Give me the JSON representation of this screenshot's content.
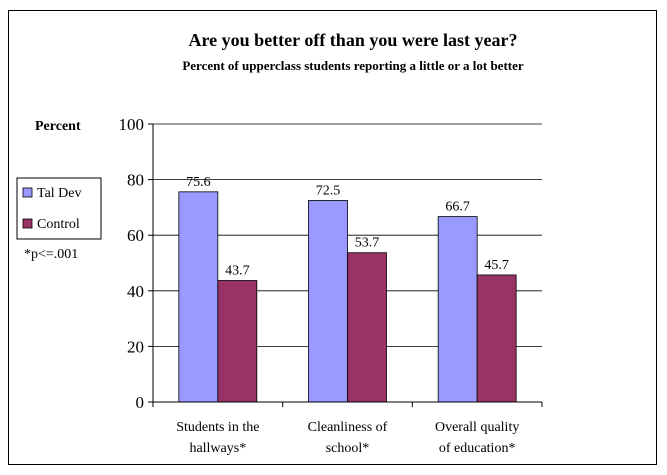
{
  "chart_data": {
    "type": "bar",
    "title": "Are you better off than you were last year?",
    "subtitle": "Percent of upperclass students reporting a little or a lot better",
    "ylabel": "Percent",
    "ylim": [
      0,
      100
    ],
    "yticks": [
      0,
      20,
      40,
      60,
      80,
      100
    ],
    "grid": true,
    "legend_position": "left",
    "categories": [
      [
        "Students in the",
        "hallways*"
      ],
      [
        "Cleanliness of",
        "school*"
      ],
      [
        "Overall quality",
        "of education*"
      ]
    ],
    "series": [
      {
        "name": "Tal Dev",
        "values": [
          75.6,
          72.5,
          66.7
        ],
        "labels": [
          "75.6",
          "72.5",
          "66.7"
        ],
        "color": "#9999ff"
      },
      {
        "name": "Control",
        "values": [
          43.7,
          53.7,
          45.7
        ],
        "labels": [
          "43.7",
          "53.7",
          "45.7"
        ],
        "color": "#993366"
      }
    ],
    "annotation": "*p<=.001"
  }
}
